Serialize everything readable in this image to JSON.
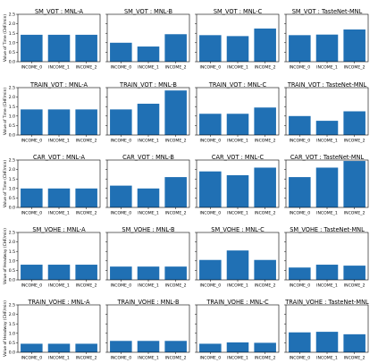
{
  "figure": {
    "bar_color": "#2070b4",
    "rows": 5,
    "cols": 4,
    "ylim": [
      0,
      2.5
    ],
    "yticks": [
      "0.0",
      "0.5",
      "1.0",
      "1.5",
      "2.0",
      "2.5"
    ],
    "categories": [
      "INCOME_0",
      "INCOME_1",
      "INCOME_2"
    ],
    "row_ylabels": [
      "Value of Time (CHF/min)",
      "Value of Time (CHF/min)",
      "Value of Time (CHF/min)",
      "Value of Headway (CHF/min)",
      "Value of Headway (CHF/min)"
    ]
  },
  "chart_data": [
    {
      "type": "bar",
      "title": "SM_VOT : MNL-A",
      "categories": [
        "INCOME_0",
        "INCOME_1",
        "INCOME_2"
      ],
      "values": [
        1.42,
        1.42,
        1.42
      ],
      "ylim": [
        0,
        2.5
      ]
    },
    {
      "type": "bar",
      "title": "SM_VOT : MNL-B",
      "categories": [
        "INCOME_0",
        "INCOME_1",
        "INCOME_2"
      ],
      "values": [
        1.0,
        0.8,
        1.45
      ],
      "ylim": [
        0,
        2.5
      ]
    },
    {
      "type": "bar",
      "title": "SM_VOT : MNL-C",
      "categories": [
        "INCOME_0",
        "INCOME_1",
        "INCOME_2"
      ],
      "values": [
        1.4,
        1.35,
        1.75
      ],
      "ylim": [
        0,
        2.5
      ]
    },
    {
      "type": "bar",
      "title": "SM_VOT : TasteNet-MNL",
      "categories": [
        "INCOME_0",
        "INCOME_1",
        "INCOME_2"
      ],
      "values": [
        1.4,
        1.43,
        1.7
      ],
      "ylim": [
        0,
        2.5
      ]
    },
    {
      "type": "bar",
      "title": "TRAIN_VOT : MNL-A",
      "categories": [
        "INCOME_0",
        "INCOME_1",
        "INCOME_2"
      ],
      "values": [
        1.35,
        1.35,
        1.35
      ],
      "ylim": [
        0,
        2.5
      ]
    },
    {
      "type": "bar",
      "title": "TRAIN_VOT : MNL-B",
      "categories": [
        "INCOME_0",
        "INCOME_1",
        "INCOME_2"
      ],
      "values": [
        1.35,
        1.65,
        2.35
      ],
      "ylim": [
        0,
        2.5
      ]
    },
    {
      "type": "bar",
      "title": "TRAIN_VOT : MNL-C",
      "categories": [
        "INCOME_0",
        "INCOME_1",
        "INCOME_2"
      ],
      "values": [
        1.12,
        1.12,
        1.45
      ],
      "ylim": [
        0,
        2.5
      ]
    },
    {
      "type": "bar",
      "title": "TRAIN_VOT : TasteNet-MNL",
      "categories": [
        "INCOME_0",
        "INCOME_1",
        "INCOME_2"
      ],
      "values": [
        1.0,
        0.75,
        1.25
      ],
      "ylim": [
        0,
        2.5
      ]
    },
    {
      "type": "bar",
      "title": "CAR_VOT : MNL-A",
      "categories": [
        "INCOME_0",
        "INCOME_1",
        "INCOME_2"
      ],
      "values": [
        1.0,
        1.0,
        1.0
      ],
      "ylim": [
        0,
        2.5
      ]
    },
    {
      "type": "bar",
      "title": "CAR_VOT : MNL-B",
      "categories": [
        "INCOME_0",
        "INCOME_1",
        "INCOME_2"
      ],
      "values": [
        1.15,
        1.0,
        1.6
      ],
      "ylim": [
        0,
        2.5
      ]
    },
    {
      "type": "bar",
      "title": "CAR_VOT : MNL-C",
      "categories": [
        "INCOME_0",
        "INCOME_1",
        "INCOME_2"
      ],
      "values": [
        1.9,
        1.7,
        2.1
      ],
      "ylim": [
        0,
        2.5
      ]
    },
    {
      "type": "bar",
      "title": "CAR_VOT : TasteNet-MNL",
      "categories": [
        "INCOME_0",
        "INCOME_1",
        "INCOME_2"
      ],
      "values": [
        1.6,
        2.1,
        2.45
      ],
      "ylim": [
        0,
        2.5
      ]
    },
    {
      "type": "bar",
      "title": "SM_VOHE : MNL-A",
      "categories": [
        "INCOME_0",
        "INCOME_1",
        "INCOME_2"
      ],
      "values": [
        0.8,
        0.8,
        0.8
      ],
      "ylim": [
        0,
        2.5
      ]
    },
    {
      "type": "bar",
      "title": "SM_VOHE : MNL-B",
      "categories": [
        "INCOME_0",
        "INCOME_1",
        "INCOME_2"
      ],
      "values": [
        0.7,
        0.7,
        0.7
      ],
      "ylim": [
        0,
        2.5
      ]
    },
    {
      "type": "bar",
      "title": "SM_VOHE : MNL-C",
      "categories": [
        "INCOME_0",
        "INCOME_1",
        "INCOME_2"
      ],
      "values": [
        1.05,
        1.55,
        1.05
      ],
      "ylim": [
        0,
        2.5
      ]
    },
    {
      "type": "bar",
      "title": "SM_VOHE : TasteNet-MNL",
      "categories": [
        "INCOME_0",
        "INCOME_1",
        "INCOME_2"
      ],
      "values": [
        0.65,
        0.8,
        0.75
      ],
      "ylim": [
        0,
        2.5
      ]
    },
    {
      "type": "bar",
      "title": "TRAIN_VOHE : MNL-A",
      "categories": [
        "INCOME_0",
        "INCOME_1",
        "INCOME_2"
      ],
      "values": [
        0.45,
        0.45,
        0.45
      ],
      "ylim": [
        0,
        2.5
      ]
    },
    {
      "type": "bar",
      "title": "TRAIN_VOHE : MNL-B",
      "categories": [
        "INCOME_0",
        "INCOME_1",
        "INCOME_2"
      ],
      "values": [
        0.6,
        0.6,
        0.6
      ],
      "ylim": [
        0,
        2.5
      ]
    },
    {
      "type": "bar",
      "title": "TRAIN_VOHE : MNL-C",
      "categories": [
        "INCOME_0",
        "INCOME_1",
        "INCOME_2"
      ],
      "values": [
        0.45,
        0.52,
        0.5
      ],
      "ylim": [
        0,
        2.5
      ]
    },
    {
      "type": "bar",
      "title": "TRAIN_VOHE : TasteNet-MNL",
      "categories": [
        "INCOME_0",
        "INCOME_1",
        "INCOME_2"
      ],
      "values": [
        1.05,
        1.08,
        0.95
      ],
      "ylim": [
        0,
        2.5
      ]
    }
  ]
}
